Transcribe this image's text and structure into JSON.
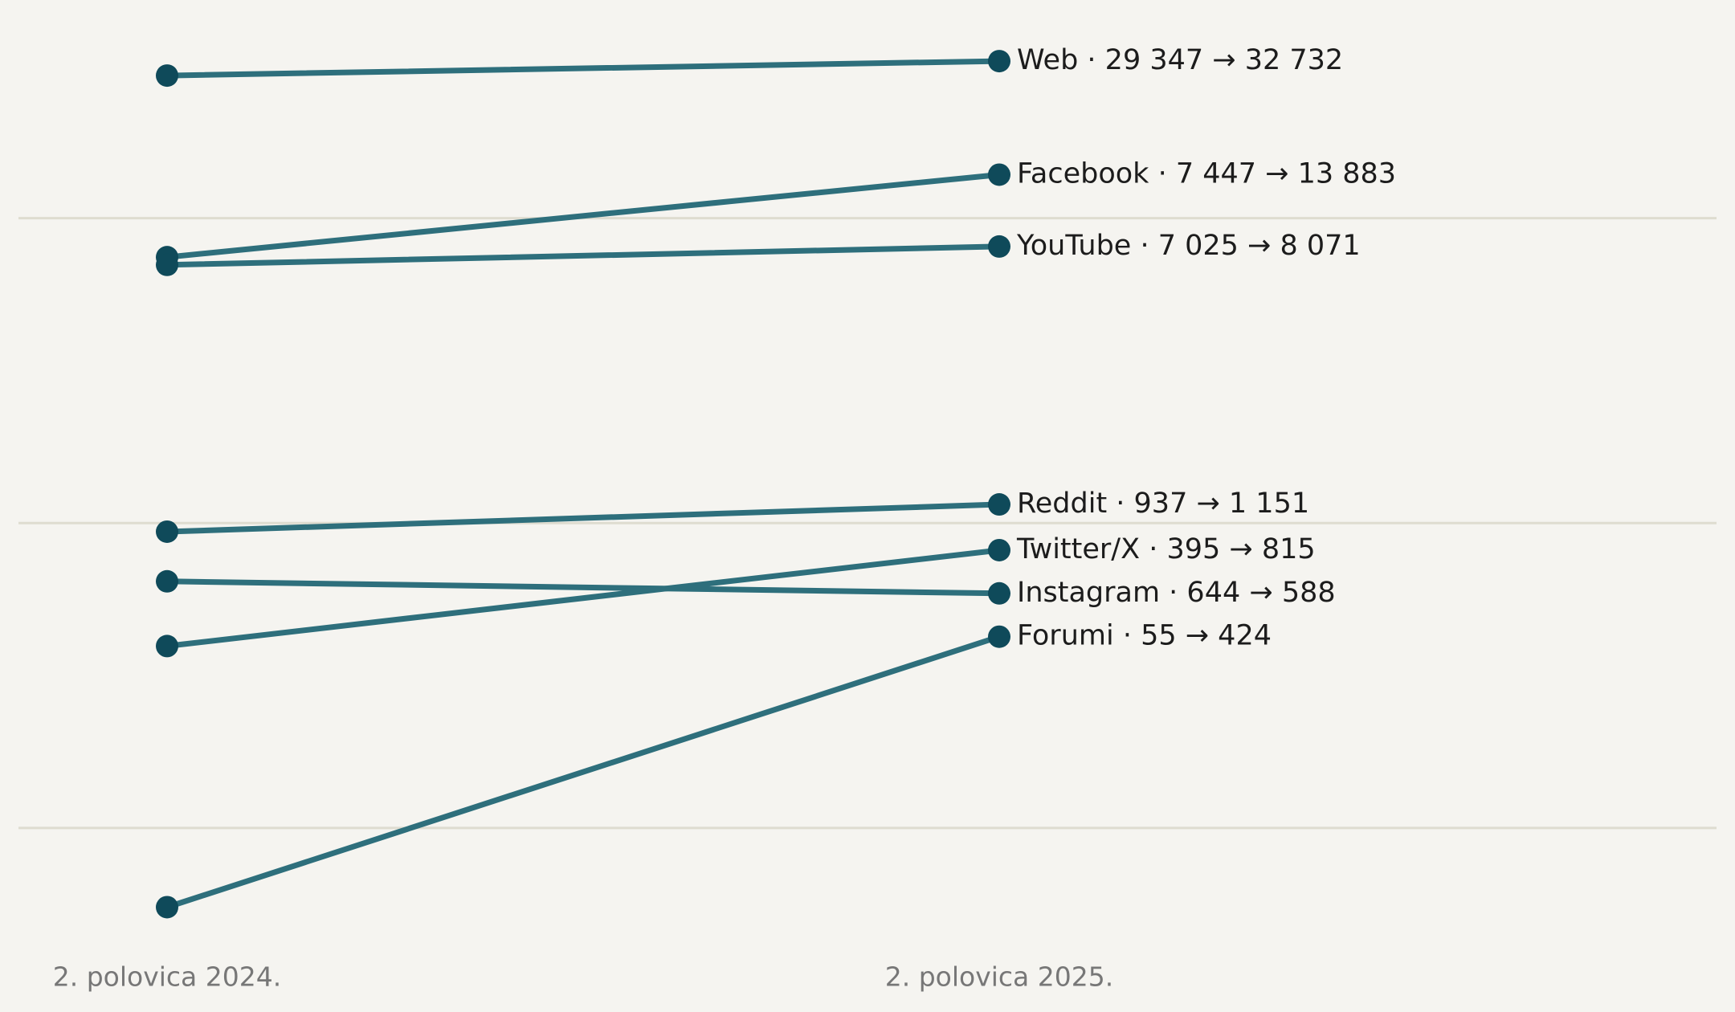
{
  "chart_data": {
    "type": "slope",
    "categories": [
      "2. polovica 2024.",
      "2. polovica 2025."
    ],
    "log_scale": true,
    "ylim": [
      40,
      40000
    ],
    "yticks": [
      100,
      1000,
      10000
    ],
    "grid": true,
    "line_color": "#2e6f7c",
    "dot_color": "#0f4a5a",
    "series": [
      {
        "label": "Web · 29 347 → 32 732",
        "values": [
          29347,
          32732
        ]
      },
      {
        "label": "Facebook · 7 447 → 13 883",
        "values": [
          7447,
          13883
        ]
      },
      {
        "label": "YouTube · 7 025 → 8 071",
        "values": [
          7025,
          8071
        ]
      },
      {
        "label": "Reddit · 937 → 1 151",
        "values": [
          937,
          1151
        ]
      },
      {
        "label": "Twitter/X · 395 → 815",
        "values": [
          395,
          815
        ]
      },
      {
        "label": "Instagram · 644 → 588",
        "values": [
          644,
          588
        ]
      },
      {
        "label": "Forumi · 55 → 424",
        "values": [
          55,
          424
        ]
      }
    ]
  }
}
